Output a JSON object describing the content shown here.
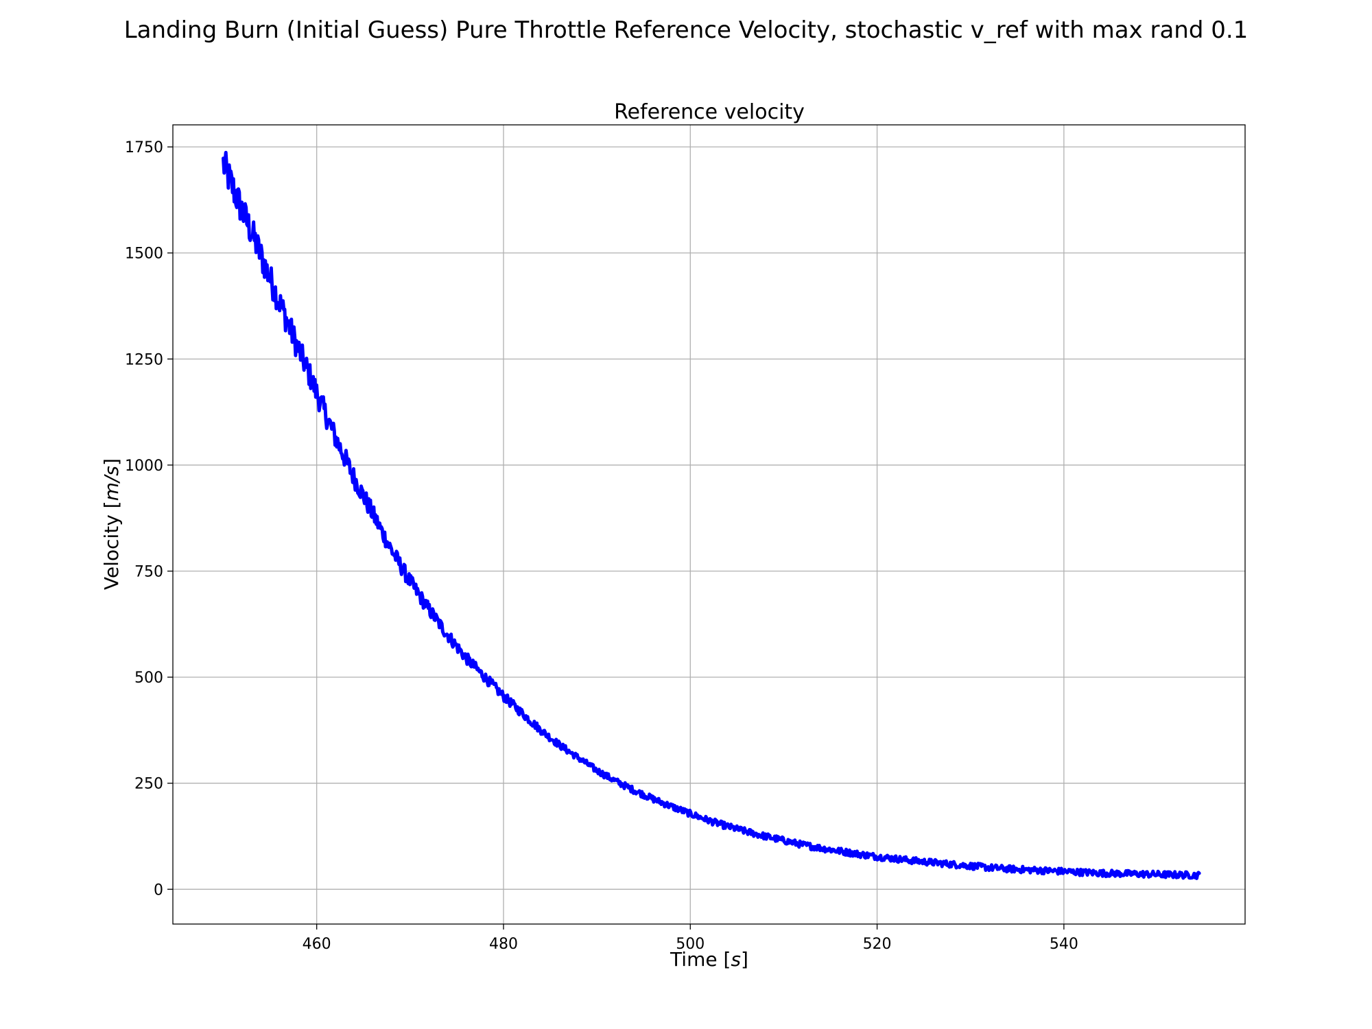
{
  "figure": {
    "suptitle": "Landing Burn (Initial Guess) Pure Throttle Reference Velocity, stochastic v_ref with max rand 0.1"
  },
  "chart_data": {
    "type": "line",
    "title": "Reference velocity",
    "xlabel_prefix": "Time [",
    "xlabel_unit": "s",
    "xlabel_suffix": "]",
    "ylabel_prefix": "Velocity [",
    "ylabel_unit": "m/s",
    "ylabel_suffix": "]",
    "xlim": [
      444.6,
      559.4
    ],
    "ylim": [
      -82,
      1802
    ],
    "xticks": [
      460,
      480,
      500,
      520,
      540
    ],
    "xtick_labels": [
      "460",
      "480",
      "500",
      "520",
      "540"
    ],
    "yticks": [
      0,
      250,
      500,
      750,
      1000,
      1250,
      1500,
      1750
    ],
    "ytick_labels": [
      "0",
      "250",
      "500",
      "750",
      "1000",
      "1250",
      "1500",
      "1750"
    ],
    "grid": true,
    "series": [
      {
        "color": "#0000ff",
        "x": [
          450,
          451,
          452,
          453,
          454,
          455,
          456,
          457,
          458,
          459,
          460,
          462,
          464,
          466,
          468,
          470,
          472,
          474,
          476,
          478,
          480,
          482,
          484,
          486,
          488,
          490,
          492,
          494,
          496,
          498,
          500,
          502,
          504,
          506,
          508,
          510,
          512,
          514,
          516,
          518,
          520,
          522,
          524,
          526,
          528,
          530,
          532,
          534,
          536,
          538,
          540,
          542,
          544,
          546,
          548,
          550,
          552,
          554.5
        ],
        "y": [
          1710,
          1655,
          1600,
          1550,
          1495,
          1440,
          1385,
          1330,
          1275,
          1225,
          1170,
          1065,
          970,
          885,
          800,
          725,
          660,
          600,
          545,
          500,
          455,
          415,
          375,
          340,
          310,
          280,
          255,
          233,
          213,
          195,
          178,
          162,
          148,
          136,
          125,
          115,
          105,
          97,
          90,
          83,
          77,
          72,
          67,
          63,
          59,
          55,
          51,
          48,
          46,
          44,
          42,
          40,
          38,
          37,
          36,
          35,
          34,
          33
        ],
        "noise_amplitude": 0.1
      }
    ]
  }
}
